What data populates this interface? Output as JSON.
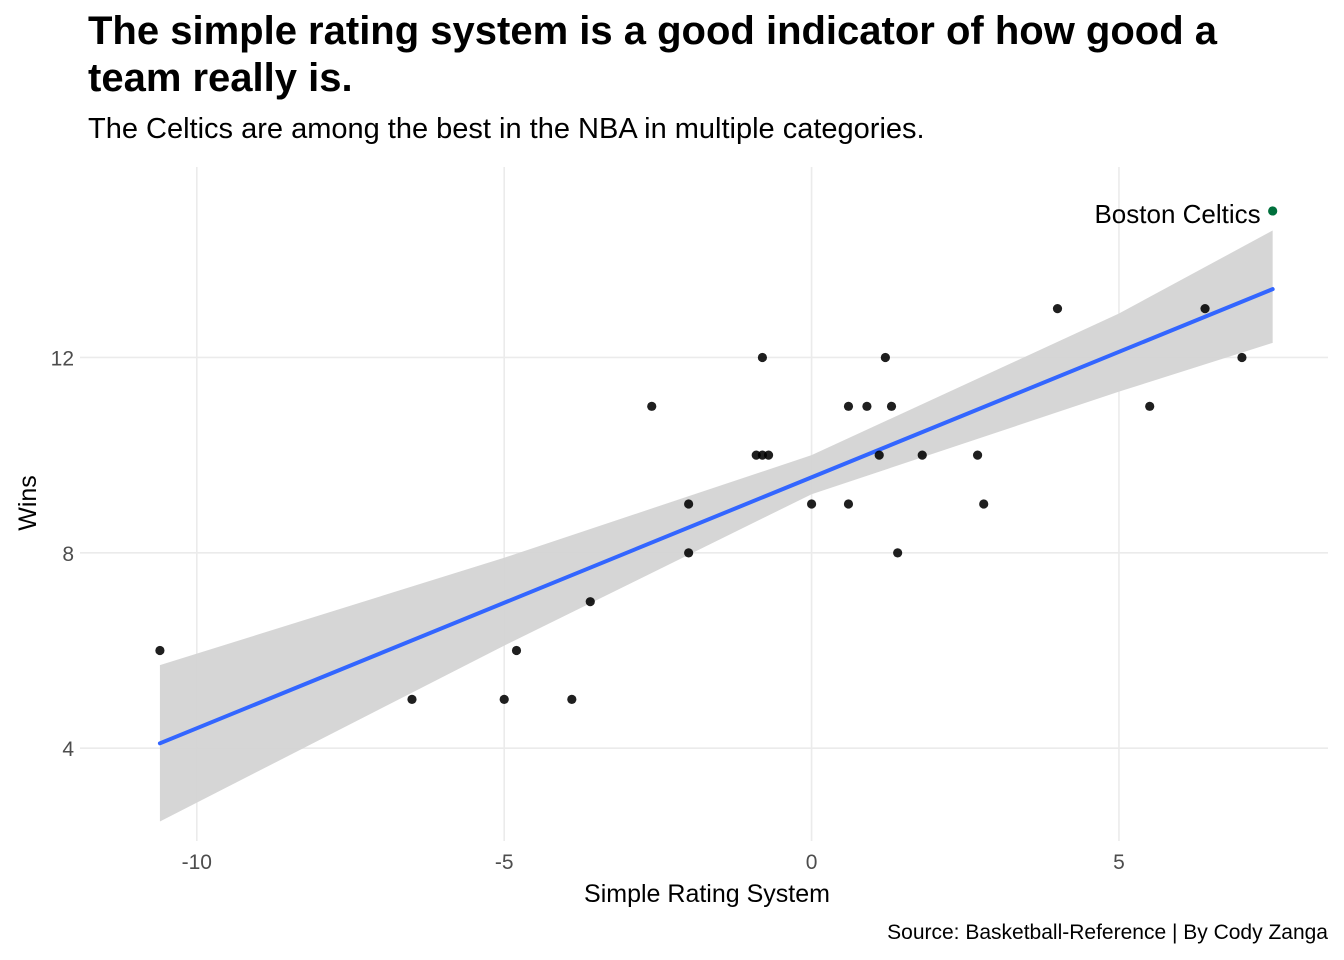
{
  "chart_data": {
    "type": "scatter",
    "title": "The simple rating system is a good indicator of how good a team really is.",
    "subtitle": "The Celtics are among the best in the NBA in multiple categories.",
    "caption": "Source: Basketball-Reference | By Cody Zanga",
    "xlabel": "Simple Rating System",
    "ylabel": "Wins",
    "xlim": [
      -11.9,
      8.4
    ],
    "ylim": [
      2.1,
      15.9
    ],
    "x_ticks": [
      -10,
      -5,
      0,
      5
    ],
    "x_tick_labels": [
      "-10",
      "-5",
      "0",
      "5"
    ],
    "y_ticks": [
      4,
      8,
      12
    ],
    "y_tick_labels": [
      "4",
      "8",
      "12"
    ],
    "grid": true,
    "legend": "none",
    "point_color": "#000000",
    "highlight_color": "#00703c",
    "trend_color": "#3366ff",
    "band_color": "#d4d4d4",
    "points": [
      {
        "x": -10.6,
        "y": 6
      },
      {
        "x": -6.5,
        "y": 5
      },
      {
        "x": -5.0,
        "y": 5
      },
      {
        "x": -4.8,
        "y": 6
      },
      {
        "x": -3.9,
        "y": 5
      },
      {
        "x": -3.6,
        "y": 7
      },
      {
        "x": -2.6,
        "y": 11
      },
      {
        "x": -2.0,
        "y": 9
      },
      {
        "x": -2.0,
        "y": 8
      },
      {
        "x": -0.9,
        "y": 10
      },
      {
        "x": -0.8,
        "y": 10
      },
      {
        "x": -0.8,
        "y": 12
      },
      {
        "x": -0.7,
        "y": 10
      },
      {
        "x": 0.0,
        "y": 9
      },
      {
        "x": 0.6,
        "y": 9
      },
      {
        "x": 0.6,
        "y": 11
      },
      {
        "x": 0.9,
        "y": 11
      },
      {
        "x": 1.1,
        "y": 10
      },
      {
        "x": 1.2,
        "y": 12
      },
      {
        "x": 1.3,
        "y": 11
      },
      {
        "x": 1.4,
        "y": 8
      },
      {
        "x": 1.8,
        "y": 10
      },
      {
        "x": 2.7,
        "y": 10
      },
      {
        "x": 2.8,
        "y": 9
      },
      {
        "x": 4.0,
        "y": 13
      },
      {
        "x": 5.5,
        "y": 11
      },
      {
        "x": 6.4,
        "y": 13
      },
      {
        "x": 7.0,
        "y": 12
      }
    ],
    "highlight": {
      "label": "Boston Celtics",
      "x": 7.5,
      "y": 15
    },
    "trend": {
      "x": [
        -10.6,
        7.5
      ],
      "y": [
        4.1,
        13.4
      ]
    },
    "band": {
      "x": [
        -10.6,
        -5,
        0,
        5,
        7.5
      ],
      "lower": [
        2.5,
        6.1,
        9.2,
        11.3,
        12.3
      ],
      "upper": [
        5.7,
        7.9,
        10.0,
        12.9,
        14.6
      ]
    }
  }
}
